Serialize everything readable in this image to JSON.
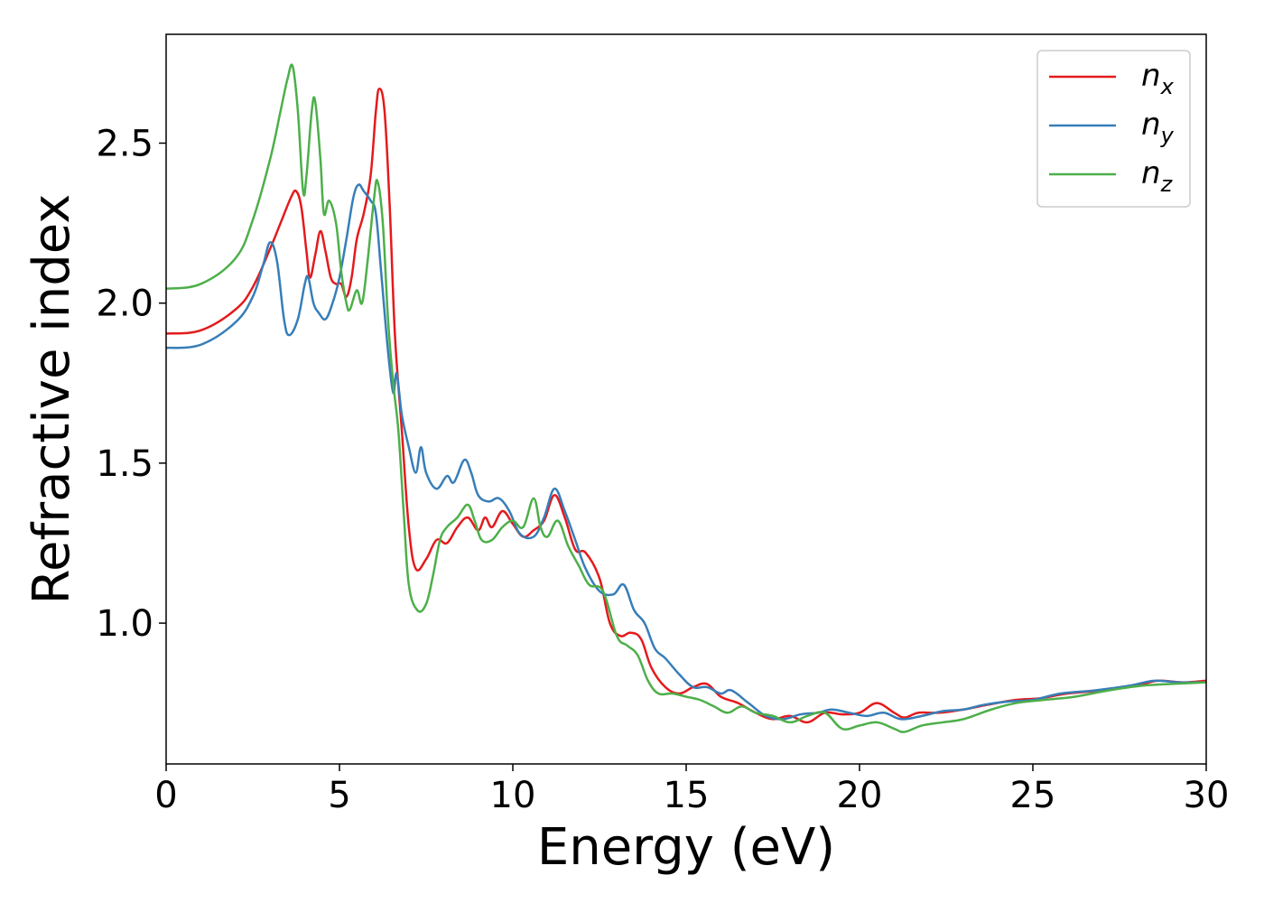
{
  "chart_data": {
    "type": "line",
    "title": "",
    "xlabel": "Energy (eV)",
    "ylabel": "Refractive index",
    "xlim": [
      0,
      30
    ],
    "ylim": [
      0.56,
      2.84
    ],
    "xticks": [
      0,
      5,
      10,
      15,
      20,
      25,
      30
    ],
    "xtick_labels": [
      "0",
      "5",
      "10",
      "15",
      "20",
      "25",
      "30"
    ],
    "yticks": [
      1.0,
      1.5,
      2.0,
      2.5
    ],
    "ytick_labels": [
      "1.0",
      "1.5",
      "2.0",
      "2.5"
    ],
    "grid": false,
    "legend_position": "top-right",
    "series": [
      {
        "name": "n",
        "subscript": "x",
        "color": "#e41a1c",
        "points": [
          [
            0,
            1.905
          ],
          [
            1,
            1.915
          ],
          [
            2,
            1.98
          ],
          [
            2.5,
            2.05
          ],
          [
            3,
            2.17
          ],
          [
            3.3,
            2.25
          ],
          [
            3.6,
            2.33
          ],
          [
            3.75,
            2.35
          ],
          [
            3.9,
            2.3
          ],
          [
            4.05,
            2.16
          ],
          [
            4.15,
            2.08
          ],
          [
            4.3,
            2.15
          ],
          [
            4.45,
            2.225
          ],
          [
            4.6,
            2.16
          ],
          [
            4.75,
            2.08
          ],
          [
            4.9,
            2.06
          ],
          [
            5.05,
            2.06
          ],
          [
            5.2,
            2.02
          ],
          [
            5.35,
            2.08
          ],
          [
            5.5,
            2.2
          ],
          [
            5.7,
            2.28
          ],
          [
            5.9,
            2.4
          ],
          [
            6.05,
            2.6
          ],
          [
            6.15,
            2.67
          ],
          [
            6.3,
            2.6
          ],
          [
            6.45,
            2.3
          ],
          [
            6.6,
            1.9
          ],
          [
            6.8,
            1.6
          ],
          [
            7.0,
            1.3
          ],
          [
            7.2,
            1.17
          ],
          [
            7.5,
            1.2
          ],
          [
            7.8,
            1.26
          ],
          [
            8.1,
            1.25
          ],
          [
            8.4,
            1.3
          ],
          [
            8.7,
            1.33
          ],
          [
            9.0,
            1.29
          ],
          [
            9.2,
            1.33
          ],
          [
            9.4,
            1.3
          ],
          [
            9.7,
            1.35
          ],
          [
            10.0,
            1.31
          ],
          [
            10.3,
            1.27
          ],
          [
            10.6,
            1.29
          ],
          [
            10.9,
            1.32
          ],
          [
            11.2,
            1.4
          ],
          [
            11.5,
            1.33
          ],
          [
            11.8,
            1.23
          ],
          [
            12.1,
            1.22
          ],
          [
            12.5,
            1.14
          ],
          [
            12.8,
            1.0
          ],
          [
            13.1,
            0.96
          ],
          [
            13.4,
            0.97
          ],
          [
            13.7,
            0.95
          ],
          [
            14.0,
            0.86
          ],
          [
            14.4,
            0.8
          ],
          [
            14.8,
            0.78
          ],
          [
            15.2,
            0.8
          ],
          [
            15.6,
            0.81
          ],
          [
            16.0,
            0.77
          ],
          [
            16.5,
            0.75
          ],
          [
            17.0,
            0.72
          ],
          [
            17.5,
            0.7
          ],
          [
            18.0,
            0.71
          ],
          [
            18.5,
            0.69
          ],
          [
            19.0,
            0.72
          ],
          [
            19.5,
            0.715
          ],
          [
            20.0,
            0.72
          ],
          [
            20.5,
            0.75
          ],
          [
            21.0,
            0.72
          ],
          [
            21.3,
            0.705
          ],
          [
            21.7,
            0.72
          ],
          [
            22.3,
            0.72
          ],
          [
            23.0,
            0.73
          ],
          [
            23.7,
            0.745
          ],
          [
            24.5,
            0.76
          ],
          [
            25.2,
            0.765
          ],
          [
            26.0,
            0.78
          ],
          [
            27.0,
            0.79
          ],
          [
            28.0,
            0.805
          ],
          [
            28.6,
            0.82
          ],
          [
            29.3,
            0.815
          ],
          [
            30,
            0.82
          ]
        ]
      },
      {
        "name": "n",
        "subscript": "y",
        "color": "#377eb8",
        "points": [
          [
            0,
            1.86
          ],
          [
            1,
            1.87
          ],
          [
            2,
            1.94
          ],
          [
            2.5,
            2.02
          ],
          [
            2.8,
            2.12
          ],
          [
            3.0,
            2.19
          ],
          [
            3.2,
            2.13
          ],
          [
            3.4,
            1.95
          ],
          [
            3.55,
            1.9
          ],
          [
            3.8,
            1.95
          ],
          [
            4.0,
            2.06
          ],
          [
            4.1,
            2.08
          ],
          [
            4.25,
            2.0
          ],
          [
            4.4,
            1.97
          ],
          [
            4.6,
            1.95
          ],
          [
            4.8,
            2.0
          ],
          [
            5.0,
            2.08
          ],
          [
            5.2,
            2.2
          ],
          [
            5.4,
            2.33
          ],
          [
            5.55,
            2.37
          ],
          [
            5.7,
            2.35
          ],
          [
            5.9,
            2.32
          ],
          [
            6.05,
            2.28
          ],
          [
            6.2,
            2.1
          ],
          [
            6.4,
            1.85
          ],
          [
            6.55,
            1.72
          ],
          [
            6.65,
            1.78
          ],
          [
            6.8,
            1.65
          ],
          [
            7.0,
            1.55
          ],
          [
            7.2,
            1.47
          ],
          [
            7.35,
            1.55
          ],
          [
            7.5,
            1.47
          ],
          [
            7.8,
            1.42
          ],
          [
            8.1,
            1.46
          ],
          [
            8.3,
            1.44
          ],
          [
            8.6,
            1.51
          ],
          [
            8.8,
            1.47
          ],
          [
            9.0,
            1.4
          ],
          [
            9.3,
            1.38
          ],
          [
            9.6,
            1.39
          ],
          [
            9.9,
            1.35
          ],
          [
            10.2,
            1.28
          ],
          [
            10.6,
            1.27
          ],
          [
            10.9,
            1.33
          ],
          [
            11.2,
            1.42
          ],
          [
            11.5,
            1.35
          ],
          [
            11.8,
            1.26
          ],
          [
            12.1,
            1.17
          ],
          [
            12.5,
            1.1
          ],
          [
            12.9,
            1.09
          ],
          [
            13.2,
            1.12
          ],
          [
            13.5,
            1.04
          ],
          [
            13.8,
            1.0
          ],
          [
            14.1,
            0.92
          ],
          [
            14.4,
            0.89
          ],
          [
            14.8,
            0.84
          ],
          [
            15.2,
            0.8
          ],
          [
            15.6,
            0.8
          ],
          [
            16.0,
            0.78
          ],
          [
            16.3,
            0.79
          ],
          [
            16.8,
            0.75
          ],
          [
            17.3,
            0.71
          ],
          [
            17.8,
            0.7
          ],
          [
            18.3,
            0.715
          ],
          [
            18.8,
            0.72
          ],
          [
            19.2,
            0.73
          ],
          [
            19.7,
            0.72
          ],
          [
            20.2,
            0.71
          ],
          [
            20.7,
            0.72
          ],
          [
            21.2,
            0.7
          ],
          [
            21.8,
            0.71
          ],
          [
            22.4,
            0.725
          ],
          [
            23.0,
            0.73
          ],
          [
            23.6,
            0.745
          ],
          [
            24.3,
            0.755
          ],
          [
            25.0,
            0.76
          ],
          [
            25.8,
            0.78
          ],
          [
            26.8,
            0.79
          ],
          [
            27.8,
            0.805
          ],
          [
            28.5,
            0.82
          ],
          [
            29.2,
            0.815
          ],
          [
            30,
            0.815
          ]
        ]
      },
      {
        "name": "n",
        "subscript": "z",
        "color": "#4daf4a",
        "points": [
          [
            0,
            2.045
          ],
          [
            1,
            2.06
          ],
          [
            2,
            2.14
          ],
          [
            2.5,
            2.26
          ],
          [
            3.0,
            2.45
          ],
          [
            3.3,
            2.6
          ],
          [
            3.5,
            2.7
          ],
          [
            3.65,
            2.74
          ],
          [
            3.8,
            2.6
          ],
          [
            3.95,
            2.35
          ],
          [
            4.05,
            2.4
          ],
          [
            4.2,
            2.6
          ],
          [
            4.3,
            2.63
          ],
          [
            4.45,
            2.45
          ],
          [
            4.55,
            2.28
          ],
          [
            4.7,
            2.32
          ],
          [
            4.9,
            2.25
          ],
          [
            5.05,
            2.1
          ],
          [
            5.2,
            2.0
          ],
          [
            5.3,
            1.98
          ],
          [
            5.5,
            2.04
          ],
          [
            5.65,
            2.0
          ],
          [
            5.8,
            2.12
          ],
          [
            6.0,
            2.33
          ],
          [
            6.1,
            2.38
          ],
          [
            6.25,
            2.25
          ],
          [
            6.4,
            1.95
          ],
          [
            6.55,
            1.75
          ],
          [
            6.7,
            1.6
          ],
          [
            6.85,
            1.35
          ],
          [
            7.0,
            1.12
          ],
          [
            7.25,
            1.04
          ],
          [
            7.5,
            1.06
          ],
          [
            7.7,
            1.15
          ],
          [
            7.9,
            1.26
          ],
          [
            8.1,
            1.3
          ],
          [
            8.4,
            1.33
          ],
          [
            8.7,
            1.37
          ],
          [
            8.9,
            1.32
          ],
          [
            9.1,
            1.26
          ],
          [
            9.4,
            1.26
          ],
          [
            9.7,
            1.3
          ],
          [
            10.0,
            1.32
          ],
          [
            10.3,
            1.3
          ],
          [
            10.6,
            1.39
          ],
          [
            10.8,
            1.3
          ],
          [
            11.0,
            1.27
          ],
          [
            11.3,
            1.32
          ],
          [
            11.6,
            1.24
          ],
          [
            11.9,
            1.18
          ],
          [
            12.2,
            1.12
          ],
          [
            12.6,
            1.1
          ],
          [
            13.0,
            0.96
          ],
          [
            13.3,
            0.93
          ],
          [
            13.6,
            0.9
          ],
          [
            13.9,
            0.82
          ],
          [
            14.2,
            0.78
          ],
          [
            14.6,
            0.78
          ],
          [
            15.0,
            0.77
          ],
          [
            15.4,
            0.76
          ],
          [
            15.8,
            0.74
          ],
          [
            16.2,
            0.72
          ],
          [
            16.6,
            0.74
          ],
          [
            17.0,
            0.72
          ],
          [
            17.5,
            0.71
          ],
          [
            18.0,
            0.69
          ],
          [
            18.5,
            0.71
          ],
          [
            19.0,
            0.72
          ],
          [
            19.5,
            0.67
          ],
          [
            20.0,
            0.68
          ],
          [
            20.5,
            0.69
          ],
          [
            21.0,
            0.67
          ],
          [
            21.3,
            0.66
          ],
          [
            21.8,
            0.68
          ],
          [
            22.4,
            0.69
          ],
          [
            23.0,
            0.7
          ],
          [
            23.8,
            0.73
          ],
          [
            24.5,
            0.75
          ],
          [
            25.3,
            0.76
          ],
          [
            26.2,
            0.77
          ],
          [
            27.2,
            0.79
          ],
          [
            28.2,
            0.805
          ],
          [
            29.0,
            0.81
          ],
          [
            30,
            0.815
          ]
        ]
      }
    ]
  }
}
